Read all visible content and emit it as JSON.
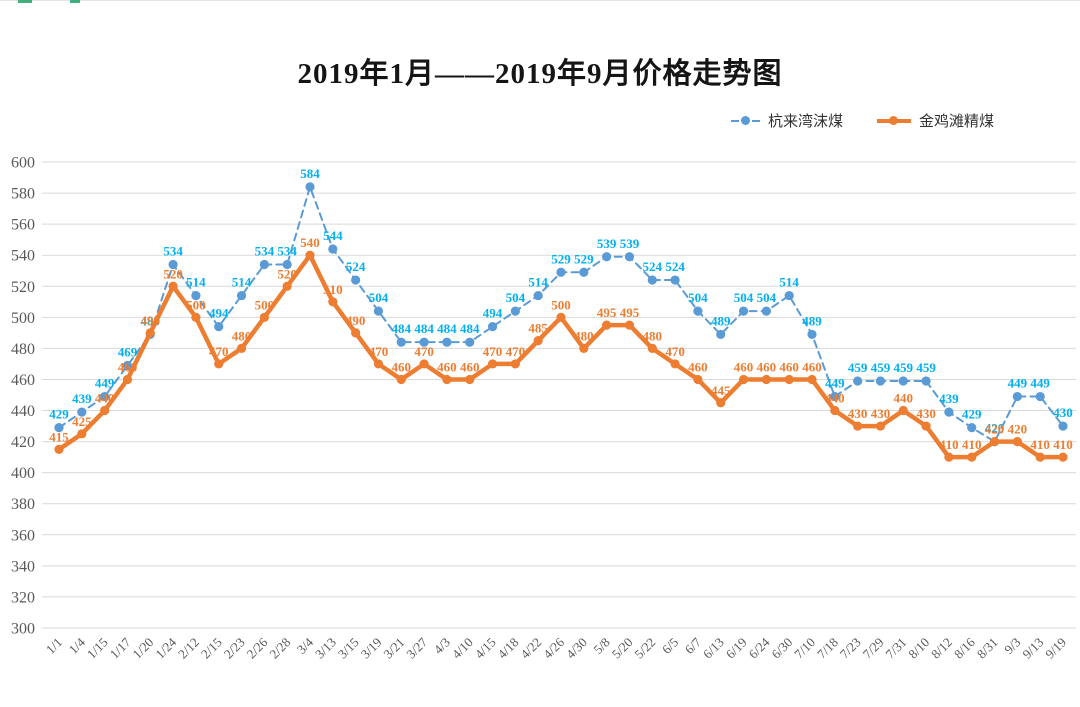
{
  "chart_data": {
    "type": "line",
    "title": "2019年1月——2019年9月价格走势图",
    "xlabel": "",
    "ylabel": "",
    "ylim": [
      300,
      600
    ],
    "ytick_step": 20,
    "yticks": [
      600,
      580,
      560,
      540,
      520,
      500,
      480,
      460,
      440,
      420,
      400,
      380,
      360,
      340,
      320,
      300
    ],
    "grid": "horizontal",
    "legend_position": "top-right",
    "categories": [
      "1/1",
      "1/4",
      "1/15",
      "1/17",
      "1/20",
      "1/24",
      "2/12",
      "2/15",
      "2/23",
      "2/26",
      "2/28",
      "3/4",
      "3/13",
      "3/15",
      "3/19",
      "3/21",
      "3/27",
      "4/3",
      "4/10",
      "4/15",
      "4/18",
      "4/22",
      "4/26",
      "4/30",
      "5/8",
      "5/20",
      "5/22",
      "6/5",
      "6/7",
      "6/13",
      "6/19",
      "6/24",
      "6/30",
      "7/10",
      "7/18",
      "7/23",
      "7/29",
      "7/31",
      "8/10",
      "8/12",
      "8/16",
      "8/31",
      "9/3",
      "9/13",
      "9/19"
    ],
    "series": [
      {
        "name": "杭来湾沫煤",
        "style": "dashed",
        "line_color": "#5b9bd5",
        "marker_color": "#5b9bd5",
        "label_color": "#00b0f0",
        "values": [
          429,
          439,
          449,
          469,
          489,
          534,
          514,
          494,
          514,
          534,
          534,
          584,
          544,
          524,
          504,
          484,
          484,
          484,
          484,
          494,
          504,
          514,
          529,
          529,
          539,
          539,
          524,
          524,
          504,
          489,
          504,
          504,
          514,
          489,
          449,
          459,
          459,
          459,
          459,
          439,
          429,
          420,
          449,
          449,
          430
        ]
      },
      {
        "name": "金鸡滩精煤",
        "style": "solid",
        "line_color": "#ed7d31",
        "marker_color": "#ed7d31",
        "label_color": "#ed7d31",
        "values": [
          415,
          425,
          440,
          460,
          490,
          520,
          500,
          470,
          480,
          500,
          520,
          540,
          510,
          490,
          470,
          460,
          470,
          460,
          460,
          470,
          470,
          485,
          500,
          480,
          495,
          495,
          480,
          470,
          460,
          445,
          460,
          460,
          460,
          460,
          440,
          430,
          430,
          440,
          430,
          410,
          410,
          420,
          420,
          410,
          410
        ]
      }
    ],
    "colors": {
      "gridline": "#d9d9d9",
      "axis_text": "#595959",
      "title_text": "#151515"
    }
  }
}
